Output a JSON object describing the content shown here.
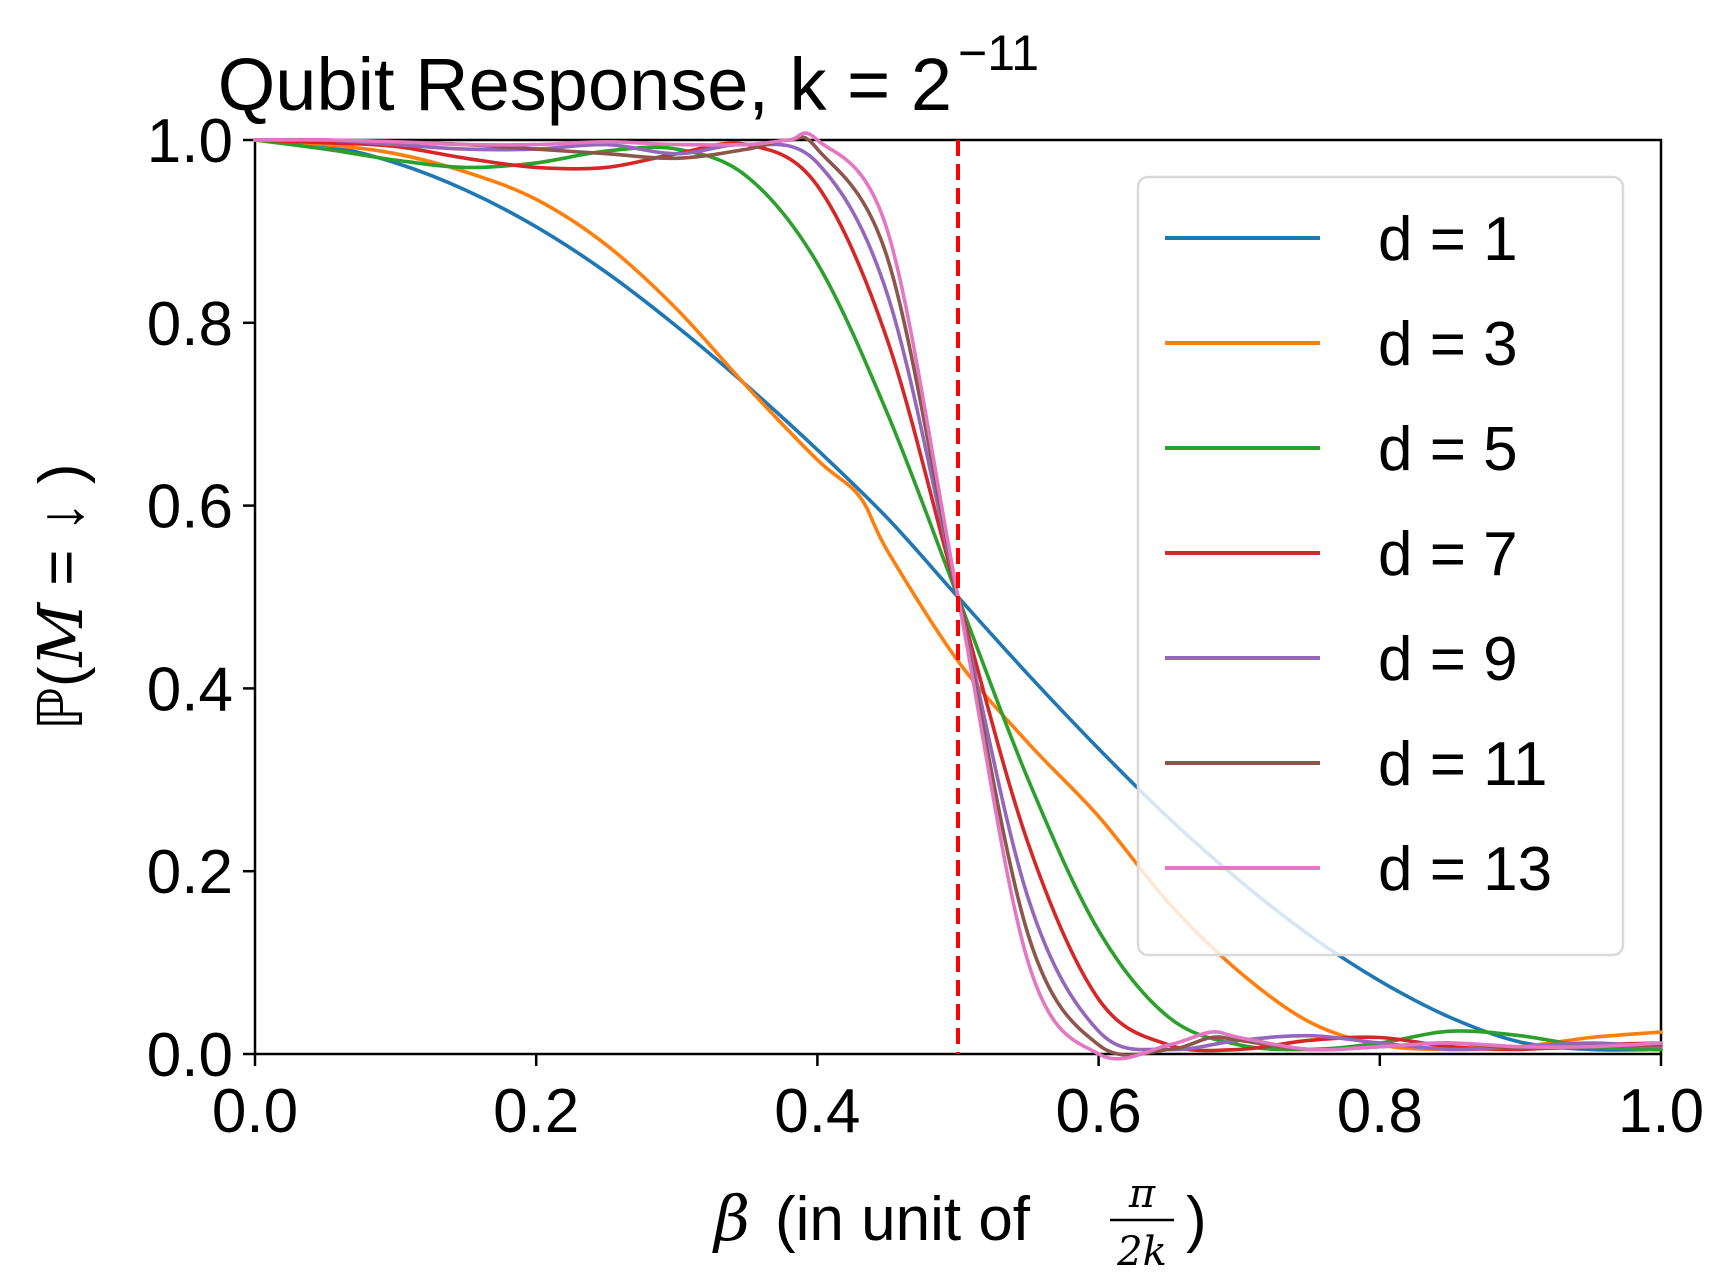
{
  "chart_data": {
    "type": "line",
    "title_main": "Qubit Response, k = 2",
    "title_exponent": "−11",
    "x_axis": {
      "symbol": "β",
      "label_text": "(in unit of",
      "frac_num": "π",
      "frac_den": "2k",
      "close": ")",
      "range": [
        0.0,
        1.0
      ],
      "ticks": [
        0.0,
        0.2,
        0.4,
        0.6,
        0.8,
        1.0
      ],
      "tick_labels": [
        "0.0",
        "0.2",
        "0.4",
        "0.6",
        "0.8",
        "1.0"
      ]
    },
    "y_axis": {
      "prefix": "ℙ(",
      "symbol": "M",
      "rest": " = ↓ )",
      "range": [
        0.0,
        1.0
      ],
      "ticks": [
        0.0,
        0.2,
        0.4,
        0.6,
        0.8,
        1.0
      ],
      "tick_labels": [
        "0.0",
        "0.2",
        "0.4",
        "0.6",
        "0.8",
        "1.0"
      ]
    },
    "threshold_line": {
      "x": 0.5,
      "color": "#ff0000",
      "style": "dashed"
    },
    "legend_position": "upper-right",
    "grid": false,
    "series": [
      {
        "name": "d = 1",
        "color": "#1f77b4",
        "points": [
          [
            0,
            1.0
          ],
          [
            0.05,
            0.994
          ],
          [
            0.1,
            0.975
          ],
          [
            0.15,
            0.945
          ],
          [
            0.2,
            0.905
          ],
          [
            0.25,
            0.855
          ],
          [
            0.3,
            0.796
          ],
          [
            0.35,
            0.731
          ],
          [
            0.4,
            0.661
          ],
          [
            0.45,
            0.586
          ],
          [
            0.5,
            0.5
          ],
          [
            0.55,
            0.415
          ],
          [
            0.6,
            0.334
          ],
          [
            0.65,
            0.258
          ],
          [
            0.7,
            0.19
          ],
          [
            0.75,
            0.13
          ],
          [
            0.8,
            0.08
          ],
          [
            0.85,
            0.04
          ],
          [
            0.9,
            0.013
          ],
          [
            0.95,
            0.005
          ],
          [
            1.0,
            0.005
          ]
        ]
      },
      {
        "name": "d = 3",
        "color": "#ff7f0e",
        "points": [
          [
            0,
            1.0
          ],
          [
            0.05,
            0.995
          ],
          [
            0.1,
            0.985
          ],
          [
            0.15,
            0.965
          ],
          [
            0.2,
            0.935
          ],
          [
            0.25,
            0.885
          ],
          [
            0.3,
            0.815
          ],
          [
            0.35,
            0.73
          ],
          [
            0.4,
            0.65
          ],
          [
            0.43,
            0.61
          ],
          [
            0.45,
            0.55
          ],
          [
            0.5,
            0.43
          ],
          [
            0.55,
            0.34
          ],
          [
            0.6,
            0.26
          ],
          [
            0.65,
            0.165
          ],
          [
            0.7,
            0.09
          ],
          [
            0.75,
            0.035
          ],
          [
            0.8,
            0.01
          ],
          [
            0.85,
            0.005
          ],
          [
            0.9,
            0.008
          ],
          [
            0.95,
            0.018
          ],
          [
            1.0,
            0.024
          ]
        ]
      },
      {
        "name": "d = 5",
        "color": "#2ca02c",
        "points": [
          [
            0,
            1.0
          ],
          [
            0.05,
            0.99
          ],
          [
            0.1,
            0.978
          ],
          [
            0.15,
            0.97
          ],
          [
            0.2,
            0.975
          ],
          [
            0.25,
            0.988
          ],
          [
            0.3,
            0.99
          ],
          [
            0.35,
            0.96
          ],
          [
            0.4,
            0.865
          ],
          [
            0.45,
            0.7
          ],
          [
            0.5,
            0.5
          ],
          [
            0.55,
            0.3
          ],
          [
            0.6,
            0.135
          ],
          [
            0.65,
            0.04
          ],
          [
            0.7,
            0.01
          ],
          [
            0.75,
            0.005
          ],
          [
            0.8,
            0.012
          ],
          [
            0.85,
            0.025
          ],
          [
            0.9,
            0.02
          ],
          [
            0.95,
            0.008
          ],
          [
            1.0,
            0.005
          ]
        ]
      },
      {
        "name": "d = 7",
        "color": "#d62728",
        "points": [
          [
            0,
            1.0
          ],
          [
            0.05,
            0.997
          ],
          [
            0.1,
            0.993
          ],
          [
            0.15,
            0.98
          ],
          [
            0.2,
            0.97
          ],
          [
            0.25,
            0.97
          ],
          [
            0.3,
            0.985
          ],
          [
            0.35,
            0.995
          ],
          [
            0.4,
            0.95
          ],
          [
            0.45,
            0.78
          ],
          [
            0.5,
            0.5
          ],
          [
            0.55,
            0.23
          ],
          [
            0.6,
            0.06
          ],
          [
            0.65,
            0.01
          ],
          [
            0.7,
            0.005
          ],
          [
            0.75,
            0.015
          ],
          [
            0.8,
            0.018
          ],
          [
            0.85,
            0.008
          ],
          [
            0.9,
            0.005
          ],
          [
            0.95,
            0.01
          ],
          [
            1.0,
            0.012
          ]
        ]
      },
      {
        "name": "d = 9",
        "color": "#9467bd",
        "points": [
          [
            0,
            1.0
          ],
          [
            0.05,
            1.0
          ],
          [
            0.1,
            0.995
          ],
          [
            0.15,
            0.99
          ],
          [
            0.2,
            0.99
          ],
          [
            0.25,
            0.995
          ],
          [
            0.3,
            0.985
          ],
          [
            0.35,
            0.995
          ],
          [
            0.4,
            0.975
          ],
          [
            0.45,
            0.83
          ],
          [
            0.5,
            0.5
          ],
          [
            0.55,
            0.17
          ],
          [
            0.6,
            0.025
          ],
          [
            0.65,
            0.005
          ],
          [
            0.7,
            0.015
          ],
          [
            0.75,
            0.02
          ],
          [
            0.8,
            0.012
          ],
          [
            0.85,
            0.005
          ],
          [
            0.9,
            0.008
          ],
          [
            0.95,
            0.012
          ],
          [
            1.0,
            0.008
          ]
        ]
      },
      {
        "name": "d = 11",
        "color": "#8c564b",
        "points": [
          [
            0,
            1.0
          ],
          [
            0.05,
            1.0
          ],
          [
            0.1,
            0.998
          ],
          [
            0.15,
            0.995
          ],
          [
            0.2,
            0.99
          ],
          [
            0.25,
            0.985
          ],
          [
            0.3,
            0.98
          ],
          [
            0.35,
            0.99
          ],
          [
            0.38,
            1.0
          ],
          [
            0.4,
            0.99
          ],
          [
            0.45,
            0.87
          ],
          [
            0.5,
            0.5
          ],
          [
            0.55,
            0.13
          ],
          [
            0.6,
            0.01
          ],
          [
            0.65,
            0.005
          ],
          [
            0.68,
            0.018
          ],
          [
            0.7,
            0.015
          ],
          [
            0.75,
            0.005
          ],
          [
            0.8,
            0.008
          ],
          [
            0.85,
            0.012
          ],
          [
            0.9,
            0.006
          ],
          [
            0.95,
            0.008
          ],
          [
            1.0,
            0.01
          ]
        ]
      },
      {
        "name": "d = 13",
        "color": "#e377c2",
        "points": [
          [
            0,
            1.0
          ],
          [
            0.05,
            1.0
          ],
          [
            0.1,
            0.998
          ],
          [
            0.15,
            0.995
          ],
          [
            0.2,
            0.995
          ],
          [
            0.25,
            0.998
          ],
          [
            0.3,
            0.995
          ],
          [
            0.35,
            0.995
          ],
          [
            0.38,
            1.0
          ],
          [
            0.4,
            1.0
          ],
          [
            0.45,
            0.9
          ],
          [
            0.5,
            0.5
          ],
          [
            0.55,
            0.1
          ],
          [
            0.6,
            0.0
          ],
          [
            0.65,
            0.01
          ],
          [
            0.68,
            0.024
          ],
          [
            0.7,
            0.018
          ],
          [
            0.75,
            0.005
          ],
          [
            0.8,
            0.008
          ],
          [
            0.85,
            0.012
          ],
          [
            0.9,
            0.008
          ],
          [
            0.95,
            0.008
          ],
          [
            1.0,
            0.012
          ]
        ]
      }
    ]
  }
}
